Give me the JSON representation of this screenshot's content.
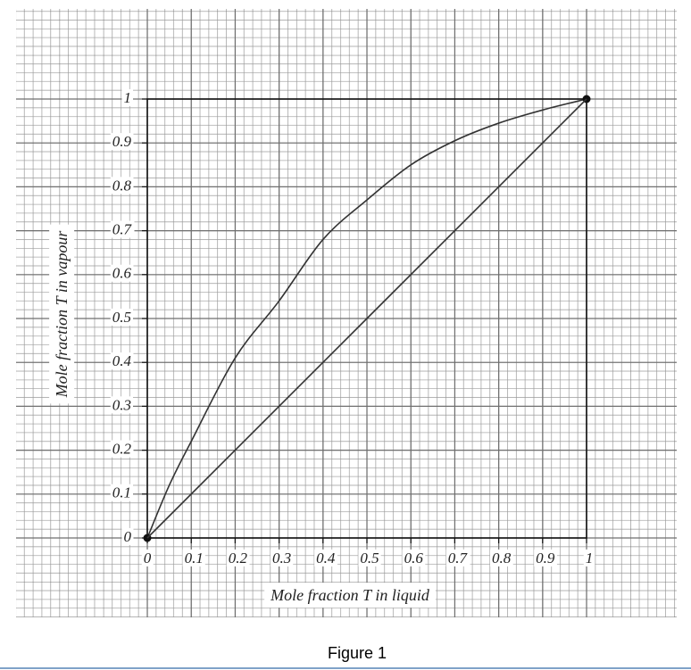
{
  "chart_data": {
    "type": "line",
    "caption": "Figure 1",
    "xlabel": "Mole fraction T in liquid",
    "ylabel": "Mole fraction T in vapour",
    "xlim": [
      0,
      1
    ],
    "ylim": [
      0,
      1
    ],
    "xticks": [
      0,
      0.1,
      0.2,
      0.3,
      0.4,
      0.5,
      0.6,
      0.7,
      0.8,
      0.9,
      1
    ],
    "yticks": [
      0,
      0.1,
      0.2,
      0.3,
      0.4,
      0.5,
      0.6,
      0.7,
      0.8,
      0.9,
      1
    ],
    "grid": true,
    "series": [
      {
        "color": "#333333",
        "markers": "ends",
        "x": [
          0,
          0.05,
          0.1,
          0.2,
          0.3,
          0.4,
          0.5,
          0.6,
          0.7,
          0.8,
          0.9,
          1
        ],
        "values": [
          0,
          0.12,
          0.22,
          0.41,
          0.54,
          0.68,
          0.77,
          0.85,
          0.905,
          0.945,
          0.975,
          1
        ]
      },
      {
        "color": "#333333",
        "x": [
          0,
          1
        ],
        "values": [
          0,
          1
        ]
      }
    ]
  }
}
